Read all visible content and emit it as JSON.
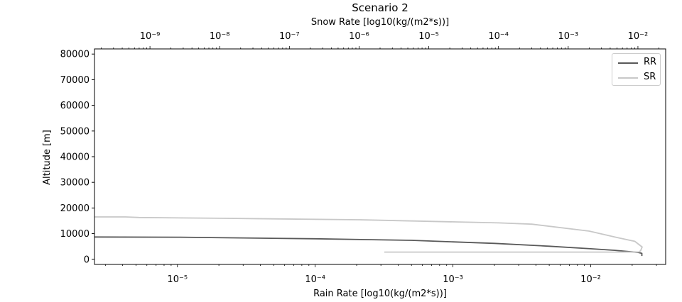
{
  "chart_data": {
    "type": "line",
    "title": "Scenario 2",
    "xlabel": "Rain Rate [log10(kg/(m2*s))]",
    "x2label": "Snow Rate [log10(kg/(m2*s))]",
    "ylabel": "Altitude [m]",
    "xscale": "log",
    "x2scale": "log",
    "xlim": [
      2.5e-06,
      0.035
    ],
    "x2lim": [
      1.6e-10,
      0.025
    ],
    "ylim": [
      -2000,
      82000
    ],
    "x_ticks": [
      "10⁻⁵",
      "10⁻⁴",
      "10⁻³",
      "10⁻²"
    ],
    "x2_ticks": [
      "10⁻⁹",
      "10⁻⁸",
      "10⁻⁷",
      "10⁻⁶",
      "10⁻⁵",
      "10⁻⁴",
      "10⁻³",
      "10⁻²"
    ],
    "y_ticks": [
      "0",
      "10000",
      "20000",
      "30000",
      "40000",
      "50000",
      "60000",
      "70000",
      "80000"
    ],
    "grid": false,
    "legend_position": "top-right",
    "series": [
      {
        "name": "RR",
        "axis": "bottom",
        "color": "#595959",
        "points": [
          [
            2.5e-06,
            8700
          ],
          [
            1e-05,
            8600
          ],
          [
            0.0001,
            8000
          ],
          [
            0.0005,
            7400
          ],
          [
            0.001,
            6800
          ],
          [
            0.002,
            6200
          ],
          [
            0.005,
            5100
          ],
          [
            0.01,
            4100
          ],
          [
            0.015,
            3500
          ],
          [
            0.022,
            2700
          ],
          [
            0.0235,
            2300
          ],
          [
            0.0235,
            1300
          ]
        ]
      },
      {
        "name": "SR",
        "axis": "top",
        "color": "#c8c8c8",
        "points": [
          [
            2.3e-06,
            2800
          ],
          [
            0.001,
            2800
          ],
          [
            0.005,
            2800
          ],
          [
            0.0105,
            2850
          ],
          [
            0.011,
            3500
          ],
          [
            0.0115,
            4800
          ],
          [
            0.009,
            7000
          ],
          [
            0.005,
            8500
          ],
          [
            0.002,
            11000
          ],
          [
            0.0003,
            13700
          ],
          [
            0.0001,
            14200
          ],
          [
            1e-06,
            15400
          ],
          [
            1e-08,
            16000
          ],
          [
            7e-10,
            16300
          ],
          [
            4.5e-10,
            16500
          ],
          [
            1.6e-10,
            16500
          ]
        ]
      }
    ]
  }
}
